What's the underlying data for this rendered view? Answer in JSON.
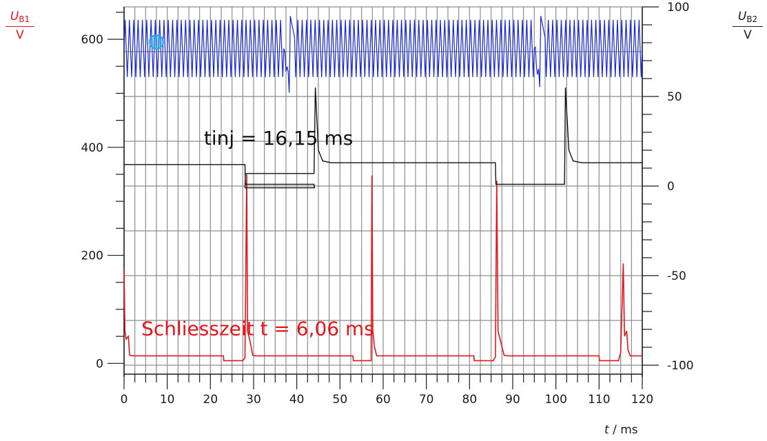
{
  "labels": {
    "left_axis": {
      "var": "U",
      "sub": "B1",
      "unit": "V"
    },
    "right_axis": {
      "var": "U",
      "sub": "B2",
      "unit": "V"
    },
    "x_axis": {
      "var": "t",
      "unit": " / ms"
    }
  },
  "colors": {
    "grid": "#8c8c8c",
    "axis": "#1a1a1a",
    "ub1_trace": "#e8141b",
    "ub2_trace": "#111111",
    "high_voltage_trace": "#1424d8",
    "marker": "#2aa7e8"
  },
  "chart_data": {
    "type": "line",
    "x_label": "t / ms",
    "x_range": [
      0,
      120
    ],
    "x_ticks": [
      0,
      10,
      20,
      30,
      40,
      50,
      60,
      70,
      80,
      90,
      100,
      110,
      120
    ],
    "left_axis": {
      "label": "UB1 / V",
      "range": [
        -20,
        660
      ],
      "ticks": [
        0,
        200,
        400,
        600
      ]
    },
    "right_axis": {
      "label": "UB2 / V",
      "range": [
        -105,
        100
      ],
      "ticks": [
        -100,
        -50,
        0,
        50,
        100
      ]
    },
    "grid": true,
    "series": [
      {
        "axis": "left",
        "points": [
          [
            0,
            175
          ],
          [
            0.2,
            60
          ],
          [
            0.5,
            45
          ],
          [
            1.0,
            50
          ],
          [
            1.3,
            15
          ],
          [
            2,
            14
          ],
          [
            23,
            14
          ],
          [
            23.1,
            5
          ],
          [
            27.5,
            5
          ],
          [
            28,
            10
          ],
          [
            28.4,
            350
          ],
          [
            28.6,
            60
          ],
          [
            29.2,
            40
          ],
          [
            29.8,
            15
          ],
          [
            30.5,
            14
          ],
          [
            53,
            14
          ],
          [
            53.1,
            5
          ],
          [
            57.2,
            5
          ],
          [
            57.4,
            348
          ],
          [
            57.6,
            60
          ],
          [
            58,
            30
          ],
          [
            58.5,
            14
          ],
          [
            81,
            14
          ],
          [
            81.1,
            5
          ],
          [
            85.5,
            5
          ],
          [
            86,
            12
          ],
          [
            86.3,
            338
          ],
          [
            86.6,
            60
          ],
          [
            87.2,
            40
          ],
          [
            88,
            15
          ],
          [
            89,
            14
          ],
          [
            110,
            14
          ],
          [
            110.1,
            5
          ],
          [
            114.5,
            5
          ],
          [
            115,
            20
          ],
          [
            115.6,
            185
          ],
          [
            115.9,
            50
          ],
          [
            116.4,
            60
          ],
          [
            116.7,
            25
          ],
          [
            117.2,
            14
          ],
          [
            120,
            14
          ]
        ]
      },
      {
        "axis": "right",
        "points": [
          [
            0,
            12
          ],
          [
            28,
            12
          ],
          [
            28.1,
            1
          ],
          [
            44,
            1
          ],
          [
            44.1,
            -1
          ],
          [
            28,
            -1
          ],
          [
            28.1,
            7
          ],
          [
            44,
            7
          ],
          [
            44.3,
            55
          ],
          [
            45,
            20
          ],
          [
            46,
            14
          ],
          [
            48,
            13
          ],
          [
            86,
            13
          ],
          [
            86.1,
            1
          ],
          [
            102,
            1
          ],
          [
            102.2,
            55
          ],
          [
            103,
            20
          ],
          [
            104,
            14
          ],
          [
            106,
            13
          ],
          [
            120,
            13
          ]
        ]
      },
      {
        "axis": "left",
        "band_center": 583,
        "band_amplitude": 53,
        "spike_times": [
          38.5,
          96.5
        ]
      }
    ],
    "annotations": [
      {
        "text": "tinj = 16,15 ms",
        "x": 18.5,
        "axis": "left",
        "y": 405
      },
      {
        "text": "Schliesszeit t = 6,06 ms",
        "x": 4,
        "axis": "left",
        "y": 52
      }
    ]
  }
}
